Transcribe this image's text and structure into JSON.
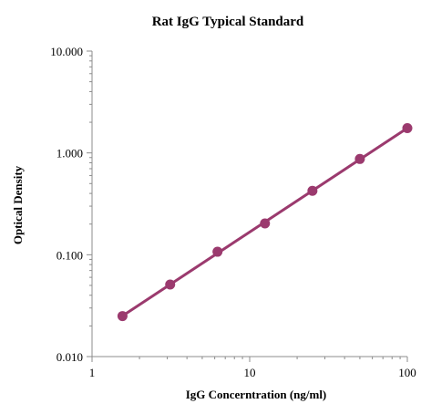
{
  "chart_data": {
    "type": "scatter",
    "title": "Rat IgG Typical Standard",
    "xlabel": "IgG Concerntration (ng/ml)",
    "ylabel": "Optical Density",
    "xscale": "log",
    "yscale": "log",
    "xlim": [
      1,
      100
    ],
    "ylim": [
      0.01,
      10
    ],
    "x_ticks": [
      "1",
      "10",
      "100"
    ],
    "y_ticks": [
      "0.010",
      "0.100",
      "1.000",
      "10.000"
    ],
    "grid": false,
    "legend": "none",
    "series": [
      {
        "color": "#9b3a6e",
        "x": [
          1.56,
          3.13,
          6.25,
          12.5,
          25,
          50,
          100
        ],
        "y": [
          0.025,
          0.051,
          0.107,
          0.203,
          0.424,
          0.872,
          1.75
        ],
        "trendline": true
      }
    ]
  }
}
